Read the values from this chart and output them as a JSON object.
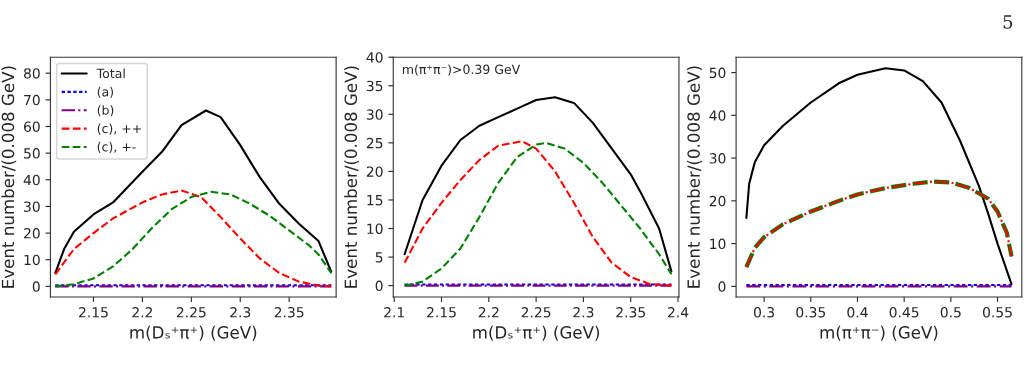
{
  "chart_data": [
    {
      "type": "line",
      "xlabel": "m(Dₛ⁺π⁺) (GeV)",
      "ylabel": "Event number/(0.008 GeV)",
      "xlim": [
        2.106,
        2.398
      ],
      "xticks": [
        2.15,
        2.2,
        2.25,
        2.3,
        2.35
      ],
      "ylim": [
        -4,
        86
      ],
      "yticks": [
        0,
        10,
        20,
        30,
        40,
        50,
        60,
        70,
        80
      ],
      "grid": false,
      "legend": "top left",
      "series": [
        {
          "name": "Total",
          "color": "#000000",
          "line_style": "solid",
          "x": [
            2.111,
            2.12,
            2.13,
            2.15,
            2.17,
            2.2,
            2.22,
            2.24,
            2.265,
            2.28,
            2.3,
            2.32,
            2.34,
            2.36,
            2.38,
            2.393
          ],
          "values": [
            5,
            14,
            20.5,
            27,
            31.5,
            43,
            50.5,
            60.5,
            66,
            63.5,
            53,
            41,
            31,
            23.5,
            17,
            5.5
          ]
        },
        {
          "name": "(a)",
          "color": "#0000ff",
          "line_style": "dotted",
          "x": [
            2.111,
            2.393
          ],
          "values": [
            0.4,
            0.4
          ]
        },
        {
          "name": "(b)",
          "color": "#800080",
          "line_style": "dashdot",
          "x": [
            2.111,
            2.393
          ],
          "values": [
            0,
            0
          ]
        },
        {
          "name": "(c), ++",
          "color": "#ff0000",
          "line_style": "dashed",
          "x": [
            2.111,
            2.13,
            2.15,
            2.17,
            2.2,
            2.22,
            2.24,
            2.26,
            2.28,
            2.3,
            2.32,
            2.34,
            2.36,
            2.38,
            2.393
          ],
          "values": [
            4.5,
            14,
            20,
            25.5,
            31.5,
            34.5,
            36,
            33.5,
            26,
            18,
            10.5,
            5,
            1.8,
            0.3,
            0
          ]
        },
        {
          "name": "(c), +-",
          "color": "#008000",
          "line_style": "dashed",
          "x": [
            2.111,
            2.13,
            2.15,
            2.17,
            2.19,
            2.21,
            2.23,
            2.25,
            2.27,
            2.29,
            2.31,
            2.33,
            2.35,
            2.37,
            2.38,
            2.393
          ],
          "values": [
            0,
            0.8,
            3,
            7.5,
            14,
            22,
            29,
            33.5,
            35.5,
            34.5,
            31,
            26.5,
            21,
            15.5,
            12,
            5
          ]
        }
      ]
    },
    {
      "type": "line",
      "xlabel": "m(Dₛ⁺π⁺) (GeV)",
      "ylabel": "Event number/(0.008 GeV)",
      "xlim": [
        2.099,
        2.401
      ],
      "xticks": [
        2.1,
        2.15,
        2.2,
        2.25,
        2.3,
        2.35,
        2.4
      ],
      "ylim": [
        -2,
        40
      ],
      "yticks": [
        0,
        5,
        10,
        15,
        20,
        25,
        30,
        35,
        40
      ],
      "grid": false,
      "annotations": [
        "m(π⁺π⁻)>0.39 GeV"
      ],
      "series": [
        {
          "color": "#000000",
          "line_style": "solid",
          "x": [
            2.111,
            2.12,
            2.13,
            2.15,
            2.17,
            2.19,
            2.21,
            2.23,
            2.25,
            2.27,
            2.29,
            2.31,
            2.33,
            2.35,
            2.36,
            2.38,
            2.393
          ],
          "values": [
            5.5,
            10,
            15,
            21,
            25.5,
            28,
            29.5,
            31,
            32.5,
            33,
            32,
            28.5,
            24,
            19.5,
            16.5,
            10,
            2.5
          ]
        },
        {
          "color": "#0000ff",
          "line_style": "dotted",
          "x": [
            2.111,
            2.393
          ],
          "values": [
            0.2,
            0.2
          ]
        },
        {
          "color": "#800080",
          "line_style": "dashdot",
          "x": [
            2.111,
            2.393
          ],
          "values": [
            0,
            0
          ]
        },
        {
          "color": "#ff0000",
          "line_style": "dashed",
          "x": [
            2.111,
            2.13,
            2.15,
            2.17,
            2.19,
            2.21,
            2.235,
            2.25,
            2.27,
            2.29,
            2.31,
            2.33,
            2.35,
            2.37,
            2.393
          ],
          "values": [
            4,
            10,
            14.5,
            18.5,
            22,
            24.5,
            25.3,
            24,
            20,
            14.5,
            8.5,
            4,
            1.5,
            0.3,
            0
          ]
        },
        {
          "color": "#008000",
          "line_style": "dashed",
          "x": [
            2.111,
            2.13,
            2.15,
            2.17,
            2.19,
            2.21,
            2.23,
            2.25,
            2.26,
            2.28,
            2.3,
            2.32,
            2.34,
            2.36,
            2.38,
            2.393
          ],
          "values": [
            0,
            0.7,
            3,
            6.5,
            12,
            18,
            22.5,
            24.7,
            25,
            24,
            21.5,
            18,
            14,
            10,
            5.5,
            2
          ]
        }
      ]
    },
    {
      "type": "line",
      "xlabel": "m(π⁺π⁻) (GeV)",
      "ylabel": "Event number/(0.008 GeV)",
      "xlim": [
        0.27,
        0.576
      ],
      "xticks": [
        0.3,
        0.35,
        0.4,
        0.45,
        0.5,
        0.55
      ],
      "ylim": [
        -2.5,
        53.6
      ],
      "yticks": [
        0,
        10,
        20,
        30,
        40,
        50
      ],
      "grid": false,
      "annotations": [
        "5"
      ],
      "series": [
        {
          "color": "#000000",
          "line_style": "solid",
          "x": [
            0.281,
            0.284,
            0.29,
            0.3,
            0.32,
            0.35,
            0.38,
            0.4,
            0.43,
            0.45,
            0.47,
            0.49,
            0.51,
            0.53,
            0.54,
            0.55,
            0.565
          ],
          "values": [
            16,
            24,
            29,
            33,
            37.5,
            43,
            47.5,
            49.5,
            51,
            50.5,
            48,
            43,
            34,
            23.5,
            17,
            10,
            0.5
          ]
        },
        {
          "color": "#0000ff",
          "line_style": "dotted",
          "x": [
            0.281,
            0.565
          ],
          "values": [
            0.3,
            0.3
          ]
        },
        {
          "color": "#800080",
          "line_style": "dashdot",
          "x": [
            0.281,
            0.565
          ],
          "values": [
            0,
            0
          ]
        },
        {
          "color": "#008000",
          "line_style": "dashed",
          "x": [
            0.281,
            0.29,
            0.3,
            0.32,
            0.35,
            0.38,
            0.4,
            0.43,
            0.46,
            0.48,
            0.5,
            0.52,
            0.54,
            0.55,
            0.56,
            0.565
          ],
          "values": [
            4.5,
            9,
            11.5,
            14.5,
            17.5,
            20,
            21.5,
            23,
            24,
            24.5,
            24.3,
            23,
            20.5,
            17.5,
            12.5,
            7
          ]
        },
        {
          "color": "#ff0000",
          "line_style": "dashdot",
          "x": [
            0.281,
            0.29,
            0.3,
            0.32,
            0.35,
            0.38,
            0.4,
            0.43,
            0.46,
            0.48,
            0.5,
            0.52,
            0.54,
            0.55,
            0.56,
            0.565
          ],
          "values": [
            4.5,
            9,
            11.5,
            14.5,
            17.5,
            20,
            21.5,
            23,
            24,
            24.5,
            24.3,
            23,
            20.5,
            17.5,
            12.5,
            7
          ]
        }
      ]
    }
  ]
}
